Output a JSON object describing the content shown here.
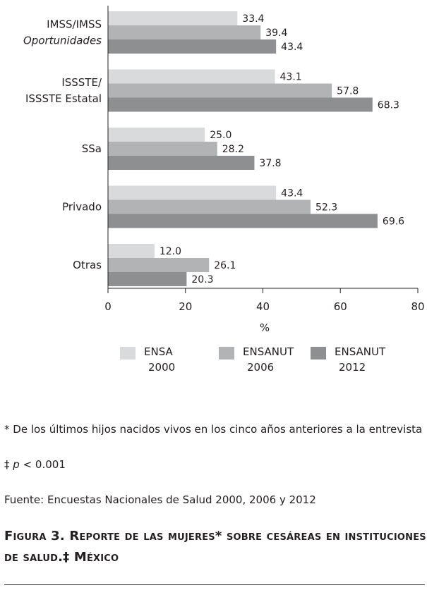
{
  "chart_data": {
    "type": "bar",
    "orientation": "horizontal",
    "categories": [
      {
        "lines": [
          "IMSS/IMSS",
          "Oportunidades"
        ],
        "italic_second_line": true
      },
      {
        "lines": [
          "ISSSTE/",
          "ISSSTE Estatal"
        ],
        "italic_second_line": false
      },
      {
        "lines": [
          "SSa"
        ],
        "italic_second_line": false
      },
      {
        "lines": [
          "Privado"
        ],
        "italic_second_line": false
      },
      {
        "lines": [
          "Otras"
        ],
        "italic_second_line": false
      }
    ],
    "series": [
      {
        "name_lines": [
          "ENSA",
          "2000"
        ],
        "color": "#d9dadb",
        "values": [
          33.4,
          43.1,
          25.0,
          43.4,
          12.0
        ],
        "labels": [
          "33.4",
          "43.1",
          "25.0",
          "43.4",
          "12.0"
        ]
      },
      {
        "name_lines": [
          "ENSANUT",
          "2006"
        ],
        "color": "#b1b3b5",
        "values": [
          39.4,
          57.8,
          28.2,
          52.3,
          26.1
        ],
        "labels": [
          "39.4",
          "57.8",
          "28.2",
          "52.3",
          "26.1"
        ]
      },
      {
        "name_lines": [
          "ENSANUT",
          "2012"
        ],
        "color": "#8d8f91",
        "values": [
          43.4,
          68.3,
          37.8,
          69.6,
          20.3
        ],
        "labels": [
          "43.4",
          "68.3",
          "37.8",
          "69.6",
          "20.3"
        ]
      }
    ],
    "xlabel": "%",
    "xlim": [
      0,
      80
    ],
    "xticks": [
      0,
      20,
      40,
      60,
      80
    ],
    "grid": false,
    "legend_position": "bottom"
  },
  "notes": {
    "footnote1_mark": "*",
    "footnote1": "De los últimos hijos nacidos vivos en los cinco años anteriores a la entrevista",
    "footnote2_mark": "‡",
    "footnote2_p": "p",
    "footnote2_rest": " < 0.001",
    "source": "Fuente: Encuestas Nacionales de Salud 2000, 2006 y 2012",
    "caption_part1": "Figura 3. Reporte de las mujeres",
    "caption_star": "*",
    "caption_part2": " sobre cesáreas en instituciones de salud.",
    "caption_dagger": "‡",
    "caption_part3": " México"
  }
}
